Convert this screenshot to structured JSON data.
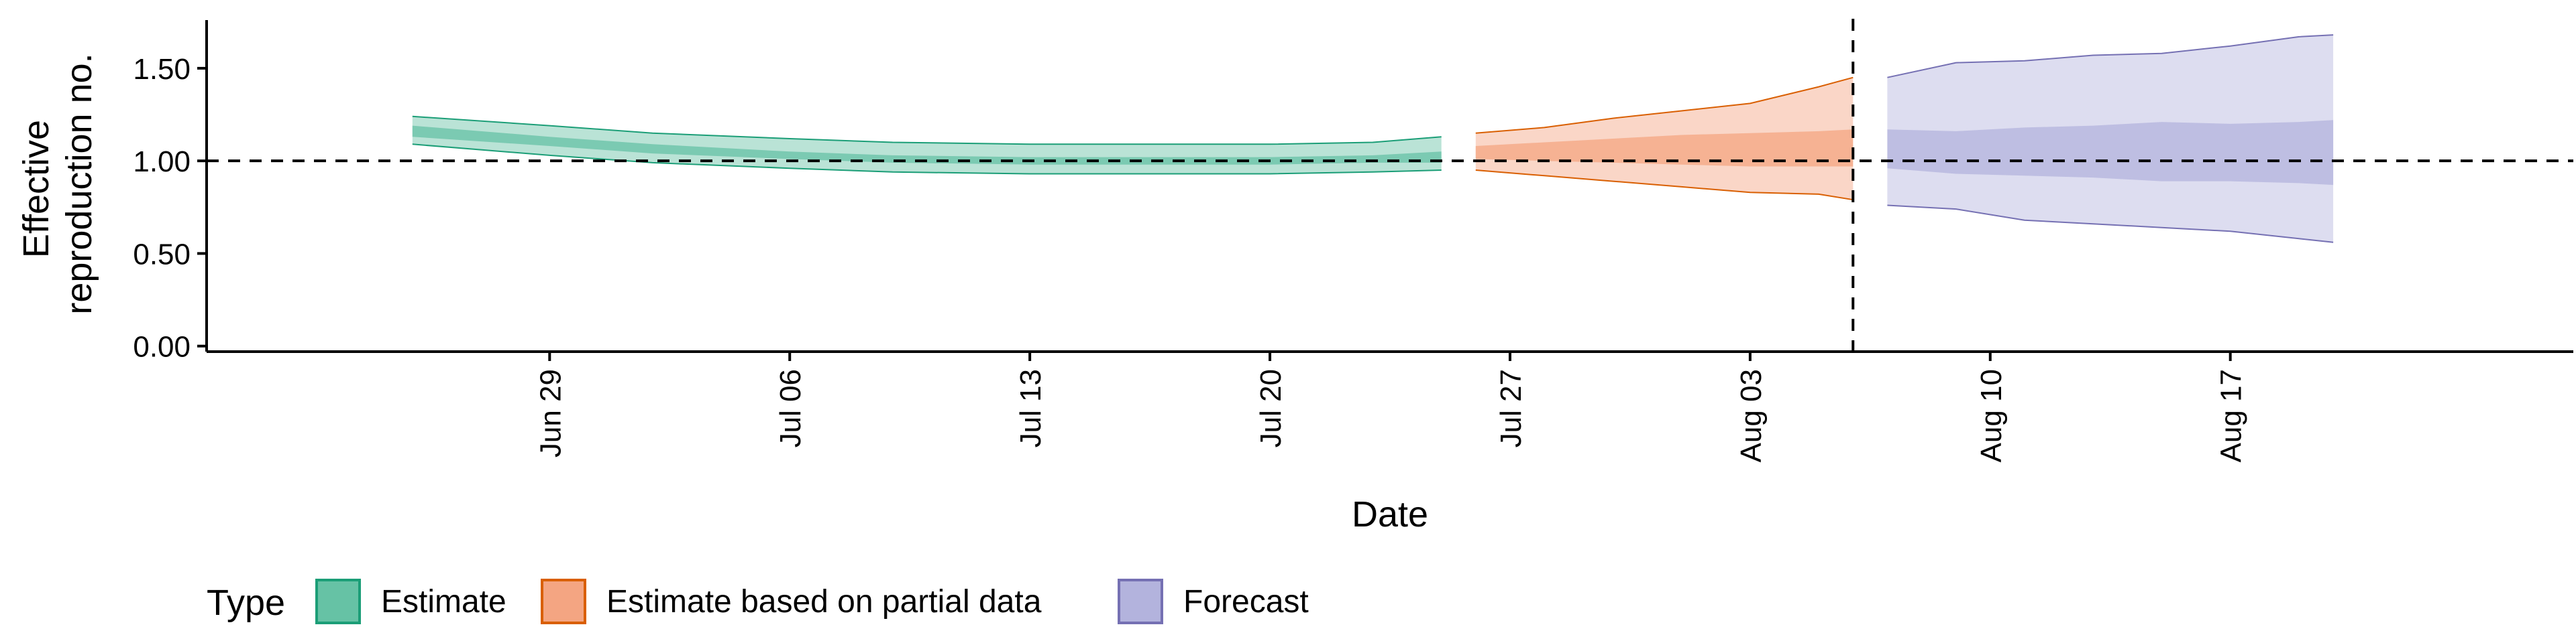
{
  "chart_data": {
    "type": "area",
    "title": "",
    "xlabel": "Date",
    "ylabel": [
      "Effective",
      "reproduction no."
    ],
    "x_range": [
      "2020-06-19",
      "2020-08-27"
    ],
    "ylim": [
      -0.03,
      1.76
    ],
    "y_ticks": [
      0.0,
      0.5,
      1.0,
      1.5
    ],
    "y_tick_labels": [
      "0.00",
      "0.50",
      "1.00",
      "1.50"
    ],
    "x_ticks": [
      "2020-06-29",
      "2020-07-06",
      "2020-07-13",
      "2020-07-20",
      "2020-07-27",
      "2020-08-03",
      "2020-08-10",
      "2020-08-17"
    ],
    "x_tick_labels": [
      "Jun 29",
      "Jul 06",
      "Jul 13",
      "Jul 20",
      "Jul 27",
      "Aug 03",
      "Aug 10",
      "Aug 17"
    ],
    "reference_line_y": 1.0,
    "forecast_start_date": "2020-08-06",
    "grid": false,
    "legend": {
      "title": "Type",
      "position": "bottom",
      "entries": [
        "Estimate",
        "Estimate based on partial data",
        "Forecast"
      ]
    },
    "series": [
      {
        "name": "Estimate",
        "fill": "#66c2a5",
        "stroke": "#1b9e77",
        "dates": [
          "2020-06-25",
          "2020-06-29",
          "2020-07-02",
          "2020-07-06",
          "2020-07-09",
          "2020-07-13",
          "2020-07-16",
          "2020-07-20",
          "2020-07-23",
          "2020-07-25"
        ],
        "outer_upper": [
          1.24,
          1.19,
          1.15,
          1.12,
          1.1,
          1.09,
          1.09,
          1.09,
          1.1,
          1.13
        ],
        "outer_lower": [
          1.09,
          1.03,
          0.99,
          0.96,
          0.94,
          0.93,
          0.93,
          0.93,
          0.94,
          0.95
        ],
        "inner_upper": [
          1.19,
          1.13,
          1.09,
          1.05,
          1.03,
          1.02,
          1.02,
          1.02,
          1.03,
          1.05
        ],
        "inner_lower": [
          1.13,
          1.08,
          1.04,
          1.01,
          0.99,
          0.98,
          0.98,
          0.98,
          0.99,
          0.99
        ]
      },
      {
        "name": "Estimate based on partial data",
        "fill": "#f4a582",
        "stroke": "#d95f02",
        "dates": [
          "2020-07-26",
          "2020-07-28",
          "2020-07-30",
          "2020-08-01",
          "2020-08-03",
          "2020-08-05",
          "2020-08-06"
        ],
        "outer_upper": [
          1.15,
          1.18,
          1.23,
          1.27,
          1.31,
          1.4,
          1.45
        ],
        "outer_lower": [
          0.95,
          0.92,
          0.89,
          0.86,
          0.83,
          0.82,
          0.79
        ],
        "inner_upper": [
          1.08,
          1.1,
          1.12,
          1.14,
          1.15,
          1.16,
          1.17
        ],
        "inner_lower": [
          1.01,
          1.0,
          0.99,
          0.98,
          0.97,
          0.97,
          0.97
        ]
      },
      {
        "name": "Forecast",
        "fill": "#b3b3dd",
        "stroke": "#7570b3",
        "dates": [
          "2020-08-07",
          "2020-08-09",
          "2020-08-11",
          "2020-08-13",
          "2020-08-15",
          "2020-08-17",
          "2020-08-19",
          "2020-08-20"
        ],
        "outer_upper": [
          1.45,
          1.53,
          1.54,
          1.57,
          1.58,
          1.62,
          1.67,
          1.68
        ],
        "outer_lower": [
          0.76,
          0.74,
          0.68,
          0.66,
          0.64,
          0.62,
          0.58,
          0.56
        ],
        "inner_upper": [
          1.17,
          1.16,
          1.18,
          1.19,
          1.21,
          1.2,
          1.21,
          1.22
        ],
        "inner_lower": [
          0.96,
          0.93,
          0.92,
          0.91,
          0.89,
          0.89,
          0.88,
          0.87
        ]
      }
    ]
  }
}
